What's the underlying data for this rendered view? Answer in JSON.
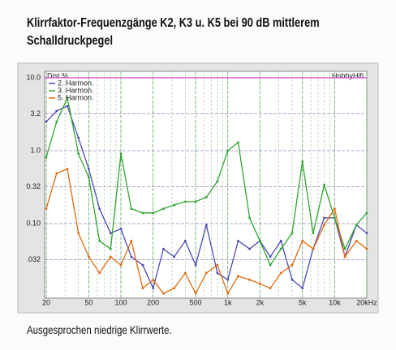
{
  "chart_data": {
    "type": "line",
    "title": "Klirrfaktor-Frequenzgänge K2, K3 u. K5 bei 90 dB mittlerem",
    "subtitle": "Schalldruckpegel",
    "caption": "Ausgesprochen niedrige Klirrwerte.",
    "y_label": "Dist %",
    "annotation": "HobbyHifi",
    "x_scale": "log",
    "y_scale": "log",
    "grid": true,
    "legend": "top-left",
    "x": [
      20,
      25,
      31.5,
      40,
      50,
      63,
      80,
      100,
      125,
      160,
      200,
      250,
      315,
      400,
      500,
      630,
      800,
      1000,
      1250,
      1600,
      2000,
      2500,
      3150,
      4000,
      5000,
      6300,
      8000,
      10000,
      12500,
      16000,
      20000
    ],
    "series": [
      {
        "name": "2. Harmon.",
        "color": "#4a4ab8",
        "values": [
          2.5,
          3.5,
          4.1,
          1.5,
          0.56,
          0.16,
          0.074,
          0.085,
          0.035,
          0.027,
          0.013,
          0.045,
          0.035,
          0.058,
          0.027,
          0.096,
          0.021,
          0.017,
          0.058,
          0.045,
          0.058,
          0.035,
          0.058,
          0.017,
          0.013,
          0.045,
          0.12,
          0.12,
          0.035,
          0.096,
          0.074
        ]
      },
      {
        "name": "3. Harmon.",
        "color": "#2fa52f",
        "values": [
          0.81,
          2.5,
          5.3,
          0.91,
          0.43,
          0.058,
          0.045,
          0.91,
          0.16,
          0.14,
          0.14,
          0.16,
          0.18,
          0.2,
          0.2,
          0.23,
          0.38,
          1.0,
          1.3,
          0.12,
          0.058,
          0.027,
          0.045,
          0.074,
          0.71,
          0.074,
          0.34,
          0.12,
          0.045,
          0.096,
          0.14
        ]
      },
      {
        "name": "5. Harmon.",
        "color": "#e06a10",
        "values": [
          0.16,
          0.49,
          0.56,
          0.074,
          0.035,
          0.021,
          0.035,
          0.027,
          0.058,
          0.013,
          0.017,
          0.011,
          0.013,
          0.021,
          0.011,
          0.021,
          0.027,
          0.011,
          0.019,
          0.017,
          0.015,
          0.013,
          0.021,
          0.027,
          0.058,
          0.045,
          0.096,
          0.16,
          0.035,
          0.058,
          0.045
        ]
      }
    ],
    "xlim": [
      20,
      20000
    ],
    "ylim": [
      0.01,
      10
    ],
    "xticks": [
      20,
      50,
      100,
      200,
      500,
      {
        "value": 1000,
        "label": "1k"
      },
      {
        "value": 2000,
        "label": "2k"
      },
      {
        "value": 5000,
        "label": "5k"
      },
      {
        "value": 10000,
        "label": "10k"
      },
      {
        "value": 20000,
        "label": "20kHz"
      }
    ],
    "yticks": [
      {
        "value": 10,
        "label": "10.0"
      },
      3.2,
      {
        "value": 1,
        "label": "1.0"
      },
      0.32,
      {
        "value": 0.1,
        "label": "0.10"
      },
      {
        "value": 0.032,
        "label": ".032"
      }
    ]
  }
}
